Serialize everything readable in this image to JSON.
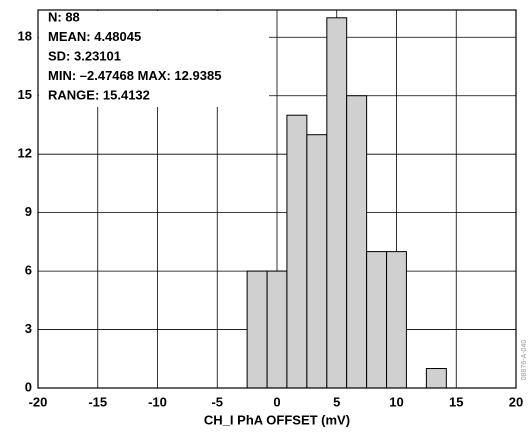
{
  "chart_data": {
    "type": "histogram",
    "xlabel": "CH_I  PhA  OFFSET (mV)",
    "annotations": [
      "N:  88",
      "MEAN:  4.48045",
      "SD:  3.23101",
      "MIN:  –2.47468  MAX: 12.9385",
      "RANGE:  15.4132"
    ],
    "side_note": "08876-A-040",
    "bins": [
      -2.5,
      -0.83,
      0.83,
      2.5,
      4.17,
      5.83,
      7.5,
      9.17,
      10.83,
      12.5,
      14.17
    ],
    "counts": [
      6,
      6,
      14,
      13,
      19,
      15,
      7,
      7,
      0,
      1
    ],
    "color": "#d0d0d0",
    "xlim": [
      -20,
      20
    ],
    "xticks": [
      -20,
      -15,
      -10,
      -5,
      0,
      5,
      10,
      15,
      20
    ],
    "ylim": [
      0,
      19.4
    ],
    "yticks": [
      0,
      3,
      6,
      9,
      12,
      15,
      18
    ],
    "grid": true
  }
}
